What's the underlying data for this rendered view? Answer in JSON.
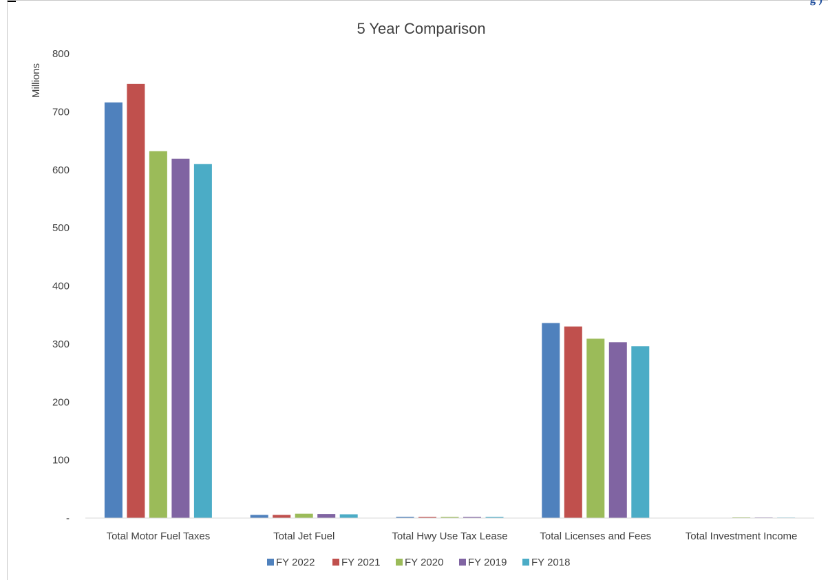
{
  "header": {
    "fragment_text": "g            )"
  },
  "chart_data": {
    "type": "bar",
    "title": "5 Year Comparison",
    "ylabel": "Millions",
    "xlabel": "",
    "ylim": [
      0,
      800
    ],
    "yticks": [
      {
        "value": 0,
        "label": "-"
      },
      {
        "value": 100,
        "label": "100"
      },
      {
        "value": 200,
        "label": "200"
      },
      {
        "value": 300,
        "label": "300"
      },
      {
        "value": 400,
        "label": "400"
      },
      {
        "value": 500,
        "label": "500"
      },
      {
        "value": 600,
        "label": "600"
      },
      {
        "value": 700,
        "label": "700"
      },
      {
        "value": 800,
        "label": "800"
      }
    ],
    "grid": false,
    "legend_position": "bottom",
    "categories": [
      "Total Motor Fuel Taxes",
      "Total Jet Fuel",
      "Total Hwy Use Tax Lease",
      "Total Licenses and Fees",
      "Total Investment Income"
    ],
    "series": [
      {
        "name": "FY 2022",
        "color": "#4f81bd",
        "values": [
          716,
          5.5,
          2.2,
          336,
          0.5
        ]
      },
      {
        "name": "FY 2021",
        "color": "#c0504d",
        "values": [
          748,
          5.5,
          2.0,
          330,
          0.4
        ]
      },
      {
        "name": "FY 2020",
        "color": "#9bbb59",
        "values": [
          632,
          7.5,
          2.0,
          309,
          1.2
        ]
      },
      {
        "name": "FY 2019",
        "color": "#8064a2",
        "values": [
          619,
          7.0,
          2.0,
          303,
          1.0
        ]
      },
      {
        "name": "FY 2018",
        "color": "#4bacc6",
        "values": [
          610,
          6.5,
          2.0,
          296,
          0.9
        ]
      }
    ]
  }
}
